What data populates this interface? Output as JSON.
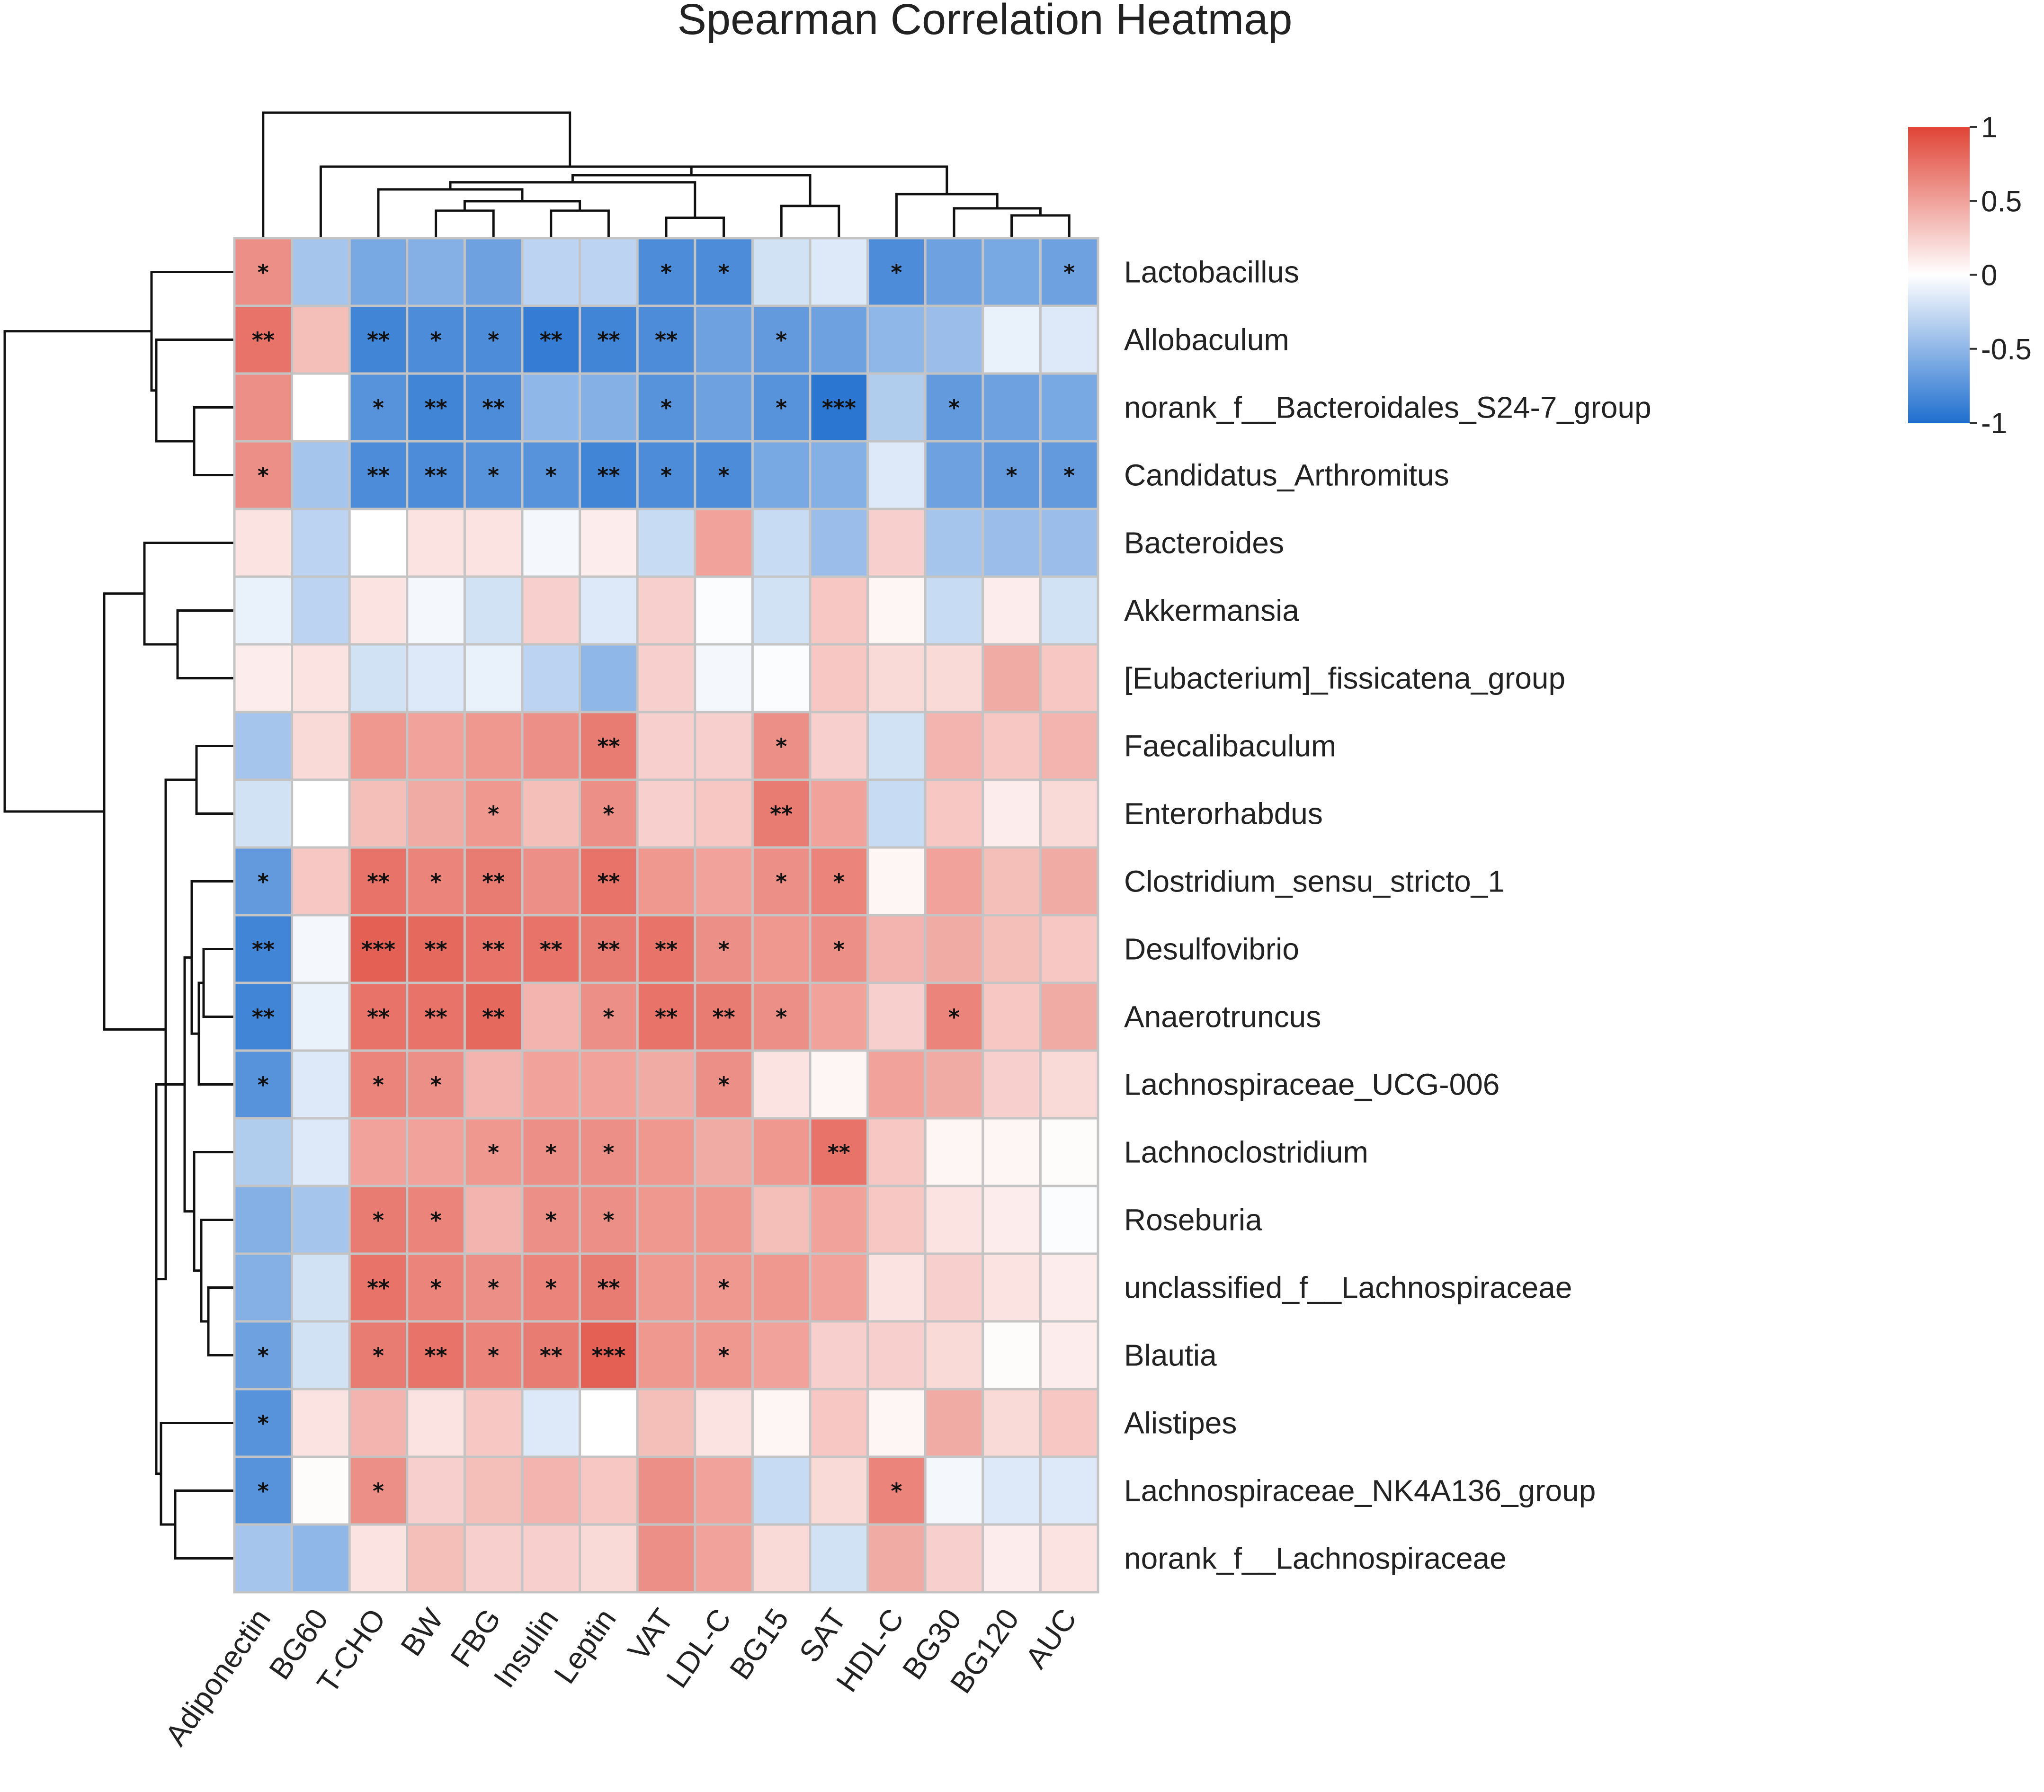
{
  "chart_data": {
    "type": "heatmap",
    "title": "Spearman Correlation Heatmap",
    "columns": [
      "Adiponectin",
      "BG60",
      "T-CHO",
      "BW",
      "FBG",
      "Insulin",
      "Leptin",
      "VAT",
      "LDL-C",
      "BG15",
      "SAT",
      "HDL-C",
      "BG30",
      "BG120",
      "AUC"
    ],
    "rows": [
      "Lactobacillus",
      "Allobaculum",
      "norank_f__Bacteroidales_S24-7_group",
      "Candidatus_Arthromitus",
      "Bacteroides",
      "Akkermansia",
      "[Eubacterium]_fissicatena_group",
      "Faecalibaculum",
      "Enterorhabdus",
      "Clostridium_sensu_stricto_1",
      "Desulfovibrio",
      "Anaerotruncus",
      "Lachnospiraceae_UCG-006",
      "Lachnoclostridium",
      "Roseburia",
      "unclassified_f__Lachnospiraceae",
      "Blautia",
      "Alistipes",
      "Lachnospiraceae_NK4A136_group",
      "norank_f__Lachnospiraceae"
    ],
    "values": [
      [
        0.6,
        -0.4,
        -0.6,
        -0.55,
        -0.65,
        -0.3,
        -0.3,
        -0.8,
        -0.8,
        -0.2,
        -0.15,
        -0.8,
        -0.65,
        -0.6,
        -0.65
      ],
      [
        0.75,
        0.35,
        -0.85,
        -0.8,
        -0.8,
        -0.9,
        -0.85,
        -0.8,
        -0.65,
        -0.7,
        -0.65,
        -0.5,
        -0.45,
        -0.1,
        -0.15
      ],
      [
        0.6,
        0.0,
        -0.75,
        -0.85,
        -0.8,
        -0.5,
        -0.55,
        -0.75,
        -0.65,
        -0.75,
        -0.95,
        -0.35,
        -0.7,
        -0.65,
        -0.6
      ],
      [
        0.6,
        -0.4,
        -0.8,
        -0.8,
        -0.75,
        -0.75,
        -0.85,
        -0.8,
        -0.8,
        -0.6,
        -0.55,
        -0.15,
        -0.65,
        -0.7,
        -0.7
      ],
      [
        0.15,
        -0.3,
        0.0,
        0.15,
        0.15,
        -0.05,
        0.1,
        -0.25,
        0.5,
        -0.25,
        -0.45,
        0.25,
        -0.4,
        -0.45,
        -0.45
      ],
      [
        -0.1,
        -0.3,
        0.15,
        -0.05,
        -0.2,
        0.25,
        -0.15,
        0.25,
        -0.02,
        -0.2,
        0.3,
        0.05,
        -0.25,
        0.1,
        -0.2
      ],
      [
        0.1,
        0.15,
        -0.2,
        -0.15,
        -0.1,
        -0.3,
        -0.5,
        0.25,
        -0.05,
        -0.02,
        0.3,
        0.2,
        0.2,
        0.45,
        0.3
      ],
      [
        -0.4,
        0.2,
        0.55,
        0.5,
        0.55,
        0.6,
        0.7,
        0.25,
        0.25,
        0.6,
        0.25,
        -0.2,
        0.4,
        0.3,
        0.4
      ],
      [
        -0.2,
        0.0,
        0.35,
        0.45,
        0.55,
        0.35,
        0.6,
        0.25,
        0.3,
        0.7,
        0.5,
        -0.25,
        0.3,
        0.1,
        0.2
      ],
      [
        -0.7,
        0.3,
        0.75,
        0.65,
        0.7,
        0.6,
        0.75,
        0.55,
        0.5,
        0.6,
        0.65,
        0.05,
        0.5,
        0.35,
        0.45
      ],
      [
        -0.85,
        -0.05,
        0.85,
        0.8,
        0.75,
        0.75,
        0.7,
        0.75,
        0.6,
        0.55,
        0.6,
        0.4,
        0.45,
        0.35,
        0.3
      ],
      [
        -0.85,
        -0.1,
        0.75,
        0.75,
        0.8,
        0.4,
        0.6,
        0.75,
        0.7,
        0.6,
        0.5,
        0.25,
        0.65,
        0.3,
        0.45
      ],
      [
        -0.75,
        -0.15,
        0.65,
        0.6,
        0.4,
        0.5,
        0.5,
        0.45,
        0.6,
        0.15,
        0.05,
        0.5,
        0.45,
        0.25,
        0.2
      ],
      [
        -0.35,
        -0.15,
        0.5,
        0.5,
        0.55,
        0.6,
        0.6,
        0.55,
        0.45,
        0.55,
        0.75,
        0.3,
        0.05,
        0.05,
        0.02
      ],
      [
        -0.55,
        -0.4,
        0.7,
        0.65,
        0.4,
        0.6,
        0.6,
        0.55,
        0.55,
        0.35,
        0.5,
        0.3,
        0.15,
        0.1,
        -0.02
      ],
      [
        -0.55,
        -0.2,
        0.75,
        0.65,
        0.6,
        0.65,
        0.7,
        0.55,
        0.55,
        0.55,
        0.5,
        0.15,
        0.25,
        0.15,
        0.1
      ],
      [
        -0.65,
        -0.2,
        0.7,
        0.75,
        0.65,
        0.7,
        0.85,
        0.55,
        0.55,
        0.5,
        0.25,
        0.25,
        0.2,
        0.02,
        0.1
      ],
      [
        -0.75,
        0.15,
        0.4,
        0.15,
        0.3,
        -0.15,
        0.0,
        0.35,
        0.15,
        0.05,
        0.3,
        0.05,
        0.45,
        0.2,
        0.3
      ],
      [
        -0.75,
        0.02,
        0.6,
        0.25,
        0.35,
        0.4,
        0.3,
        0.6,
        0.5,
        -0.25,
        0.2,
        0.65,
        -0.05,
        -0.15,
        -0.15
      ],
      [
        -0.4,
        -0.5,
        0.15,
        0.35,
        0.25,
        0.25,
        0.2,
        0.6,
        0.5,
        0.2,
        -0.2,
        0.45,
        0.25,
        0.1,
        0.15
      ]
    ],
    "significance": [
      [
        "*",
        "",
        "",
        "",
        "",
        "",
        "",
        "*",
        "*",
        "",
        "",
        "*",
        "",
        "",
        "*"
      ],
      [
        "**",
        "",
        "**",
        "*",
        "*",
        "**",
        "**",
        "**",
        "",
        "*",
        "",
        "",
        "",
        "",
        ""
      ],
      [
        "",
        "",
        "*",
        "**",
        "**",
        "",
        "",
        "*",
        "",
        "*",
        "***",
        "",
        "*",
        "",
        ""
      ],
      [
        "*",
        "",
        "**",
        "**",
        "*",
        "*",
        "**",
        "*",
        "*",
        "",
        "",
        "",
        "",
        "*",
        "*"
      ],
      [
        "",
        "",
        "",
        "",
        "",
        "",
        "",
        "",
        "",
        "",
        "",
        "",
        "",
        "",
        ""
      ],
      [
        "",
        "",
        "",
        "",
        "",
        "",
        "",
        "",
        "",
        "",
        "",
        "",
        "",
        "",
        ""
      ],
      [
        "",
        "",
        "",
        "",
        "",
        "",
        "",
        "",
        "",
        "",
        "",
        "",
        "",
        "",
        ""
      ],
      [
        "",
        "",
        "",
        "",
        "",
        "",
        "**",
        "",
        "",
        "*",
        "",
        "",
        "",
        "",
        ""
      ],
      [
        "",
        "",
        "",
        "",
        "*",
        "",
        "*",
        "",
        "",
        "**",
        "",
        "",
        "",
        "",
        ""
      ],
      [
        "*",
        "",
        "**",
        "*",
        "**",
        "",
        "**",
        "",
        "",
        "*",
        "*",
        "",
        "",
        "",
        ""
      ],
      [
        "**",
        "",
        "***",
        "**",
        "**",
        "**",
        "**",
        "**",
        "*",
        "",
        "*",
        "",
        "",
        "",
        ""
      ],
      [
        "**",
        "",
        "**",
        "**",
        "**",
        "",
        "*",
        "**",
        "**",
        "*",
        "",
        "",
        "*",
        "",
        ""
      ],
      [
        "*",
        "",
        "*",
        "*",
        "",
        "",
        "",
        "",
        "*",
        "",
        "",
        "",
        "",
        "",
        ""
      ],
      [
        "",
        "",
        "",
        "",
        "*",
        "*",
        "*",
        "",
        "",
        "",
        "**",
        "",
        "",
        "",
        ""
      ],
      [
        "",
        "",
        "*",
        "*",
        "",
        "*",
        "*",
        "",
        "",
        "",
        "",
        "",
        "",
        "",
        ""
      ],
      [
        "",
        "",
        "**",
        "*",
        "*",
        "*",
        "**",
        "",
        "*",
        "",
        "",
        "",
        "",
        "",
        ""
      ],
      [
        "*",
        "",
        "*",
        "**",
        "*",
        "**",
        "***",
        "",
        "*",
        "",
        "",
        "",
        "",
        "",
        ""
      ],
      [
        "*",
        "",
        "",
        "",
        "",
        "",
        "",
        "",
        "",
        "",
        "",
        "",
        "",
        "",
        ""
      ],
      [
        "*",
        "",
        "*",
        "",
        "",
        "",
        "",
        "",
        "",
        "",
        "",
        "*",
        "",
        "",
        ""
      ],
      [
        "",
        "",
        "",
        "",
        "",
        "",
        "",
        "",
        "",
        "",
        "",
        "",
        "",
        "",
        ""
      ]
    ],
    "colorbar": {
      "range": [
        -1,
        1
      ],
      "ticks": [
        "1",
        "0.5",
        "0",
        "-0.5",
        "-1"
      ],
      "colors": {
        "low": "#1f6fcf",
        "mid": "#ffffff",
        "high": "#e04436"
      }
    }
  }
}
